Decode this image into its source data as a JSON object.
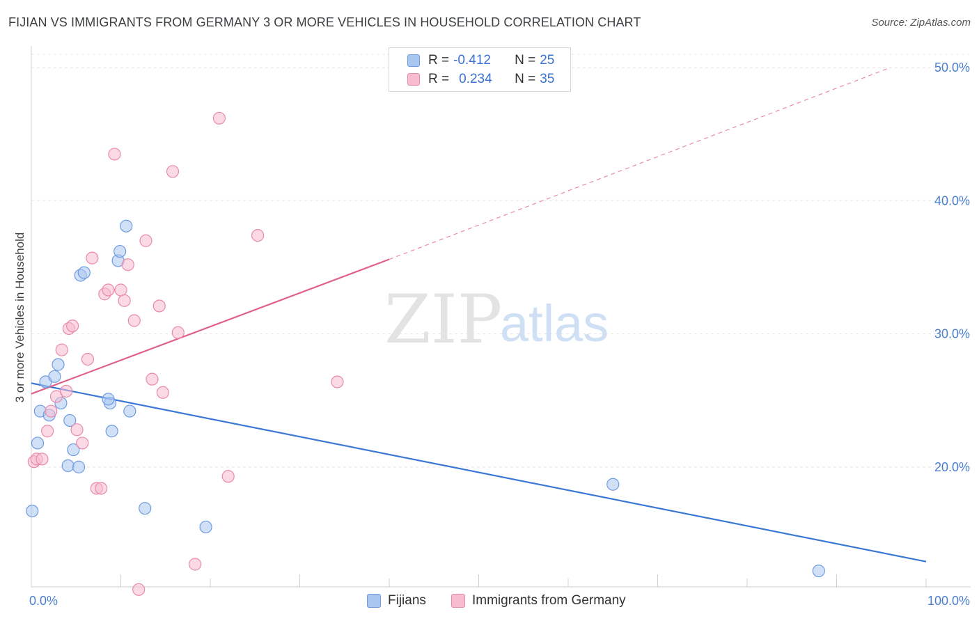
{
  "header": {
    "title": "FIJIAN VS IMMIGRANTS FROM GERMANY 3 OR MORE VEHICLES IN HOUSEHOLD CORRELATION CHART",
    "source": "Source: ZipAtlas.com"
  },
  "watermark": {
    "zip": "ZIP",
    "atlas": "atlas"
  },
  "legend": {
    "rows": [
      {
        "r_label": "R =",
        "r_value": "-0.412",
        "n_label": "N =",
        "n_value": "25",
        "color": "#a9c6f0",
        "border": "#6f9be0"
      },
      {
        "r_label": "R =",
        "r_value": "0.234",
        "n_label": "N =",
        "n_value": "35",
        "color": "#f7bcd0",
        "border": "#e98aab"
      }
    ]
  },
  "bottom_legend": {
    "items": [
      {
        "label": "Fijians",
        "color": "#a9c6f0",
        "border": "#6f9be0"
      },
      {
        "label": "Immigrants from Germany",
        "color": "#f7bcd0",
        "border": "#e98aab"
      }
    ]
  },
  "chart_data": {
    "type": "scatter",
    "title": "FIJIAN VS IMMIGRANTS FROM GERMANY 3 OR MORE VEHICLES IN HOUSEHOLD CORRELATION CHART",
    "xlabel": "",
    "ylabel": "3 or more Vehicles in Household",
    "xlim": [
      0,
      100
    ],
    "ylim": [
      11,
      51
    ],
    "x_ticks": [
      {
        "value": 0,
        "label": "0.0%"
      },
      {
        "value": 100,
        "label": "100.0%"
      }
    ],
    "y_ticks": [
      {
        "value": 20,
        "label": "20.0%"
      },
      {
        "value": 30,
        "label": "30.0%"
      },
      {
        "value": 40,
        "label": "40.0%"
      },
      {
        "value": 50,
        "label": "50.0%"
      }
    ],
    "grid": true,
    "legend_position": "top-center",
    "series": [
      {
        "name": "Fijians",
        "color": "#6f9be0",
        "fill": "#a9c6f0",
        "points": [
          [
            0.1,
            16.7
          ],
          [
            0.7,
            21.8
          ],
          [
            1.0,
            24.2
          ],
          [
            1.6,
            26.4
          ],
          [
            2.0,
            23.9
          ],
          [
            2.6,
            26.8
          ],
          [
            3.0,
            27.7
          ],
          [
            3.3,
            24.8
          ],
          [
            4.1,
            20.1
          ],
          [
            4.3,
            23.5
          ],
          [
            4.7,
            21.3
          ],
          [
            5.3,
            20.0
          ],
          [
            5.5,
            34.4
          ],
          [
            5.9,
            34.6
          ],
          [
            8.8,
            24.8
          ],
          [
            8.6,
            25.1
          ],
          [
            9.0,
            22.7
          ],
          [
            9.7,
            35.5
          ],
          [
            9.9,
            36.2
          ],
          [
            10.6,
            38.1
          ],
          [
            11.0,
            24.2
          ],
          [
            12.7,
            16.9
          ],
          [
            19.5,
            15.5
          ],
          [
            65.0,
            18.7
          ],
          [
            88.0,
            12.2
          ]
        ],
        "trend": {
          "x": [
            0,
            100
          ],
          "y": [
            26.3,
            12.9
          ],
          "style": "solid",
          "color": "#3a78d4"
        }
      },
      {
        "name": "Immigrants from Germany",
        "color": "#e98aab",
        "fill": "#f7bcd0",
        "points": [
          [
            0.3,
            20.4
          ],
          [
            0.6,
            20.6
          ],
          [
            1.2,
            20.6
          ],
          [
            1.8,
            22.7
          ],
          [
            2.2,
            24.2
          ],
          [
            2.8,
            25.3
          ],
          [
            3.4,
            28.8
          ],
          [
            3.9,
            25.7
          ],
          [
            4.2,
            30.4
          ],
          [
            4.6,
            30.6
          ],
          [
            5.1,
            22.8
          ],
          [
            5.7,
            21.8
          ],
          [
            6.3,
            28.1
          ],
          [
            6.8,
            35.7
          ],
          [
            7.3,
            18.4
          ],
          [
            7.8,
            18.4
          ],
          [
            8.2,
            33.0
          ],
          [
            8.6,
            33.3
          ],
          [
            9.3,
            43.5
          ],
          [
            10.0,
            33.3
          ],
          [
            10.4,
            32.5
          ],
          [
            10.8,
            35.2
          ],
          [
            11.5,
            31.0
          ],
          [
            12.0,
            10.8
          ],
          [
            12.8,
            37.0
          ],
          [
            13.5,
            26.6
          ],
          [
            14.3,
            32.1
          ],
          [
            14.7,
            25.6
          ],
          [
            15.8,
            42.2
          ],
          [
            16.4,
            30.1
          ],
          [
            18.3,
            12.7
          ],
          [
            21.0,
            46.2
          ],
          [
            22.0,
            19.3
          ],
          [
            25.3,
            37.4
          ],
          [
            34.2,
            26.4
          ]
        ],
        "trend": {
          "x": [
            0,
            40
          ],
          "y": [
            25.5,
            35.6
          ],
          "style": "solid",
          "color": "#e0608a"
        },
        "trend_extension": {
          "x": [
            40,
            96
          ],
          "y": [
            35.6,
            50.0
          ],
          "style": "dashed",
          "color": "#e98aab"
        }
      }
    ]
  }
}
